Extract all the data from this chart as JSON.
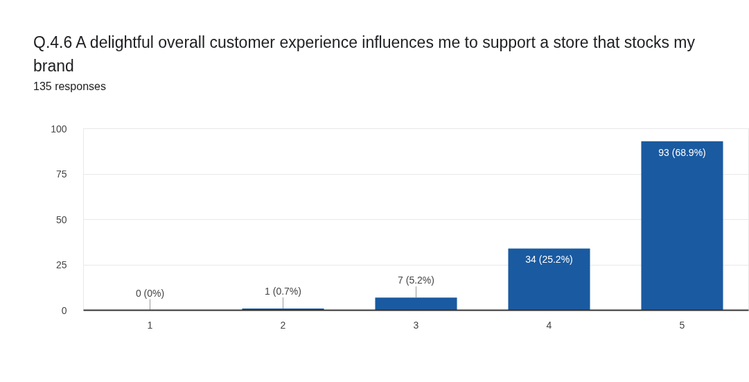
{
  "chart_data": {
    "type": "bar",
    "title": "Q.4.6 A delightful overall customer experience influences me to support a store that stocks my brand",
    "subtitle": "135 responses",
    "categories": [
      "1",
      "2",
      "3",
      "4",
      "5"
    ],
    "values": [
      0,
      1,
      7,
      34,
      93
    ],
    "value_labels": [
      "0 (0%)",
      "1 (0.7%)",
      "7 (5.2%)",
      "34 (25.2%)",
      "93 (68.9%)"
    ],
    "color": "#1a5aa0",
    "ylim": [
      0,
      100
    ],
    "yticks": [
      0,
      25,
      50,
      75,
      100
    ],
    "grid": "y"
  }
}
